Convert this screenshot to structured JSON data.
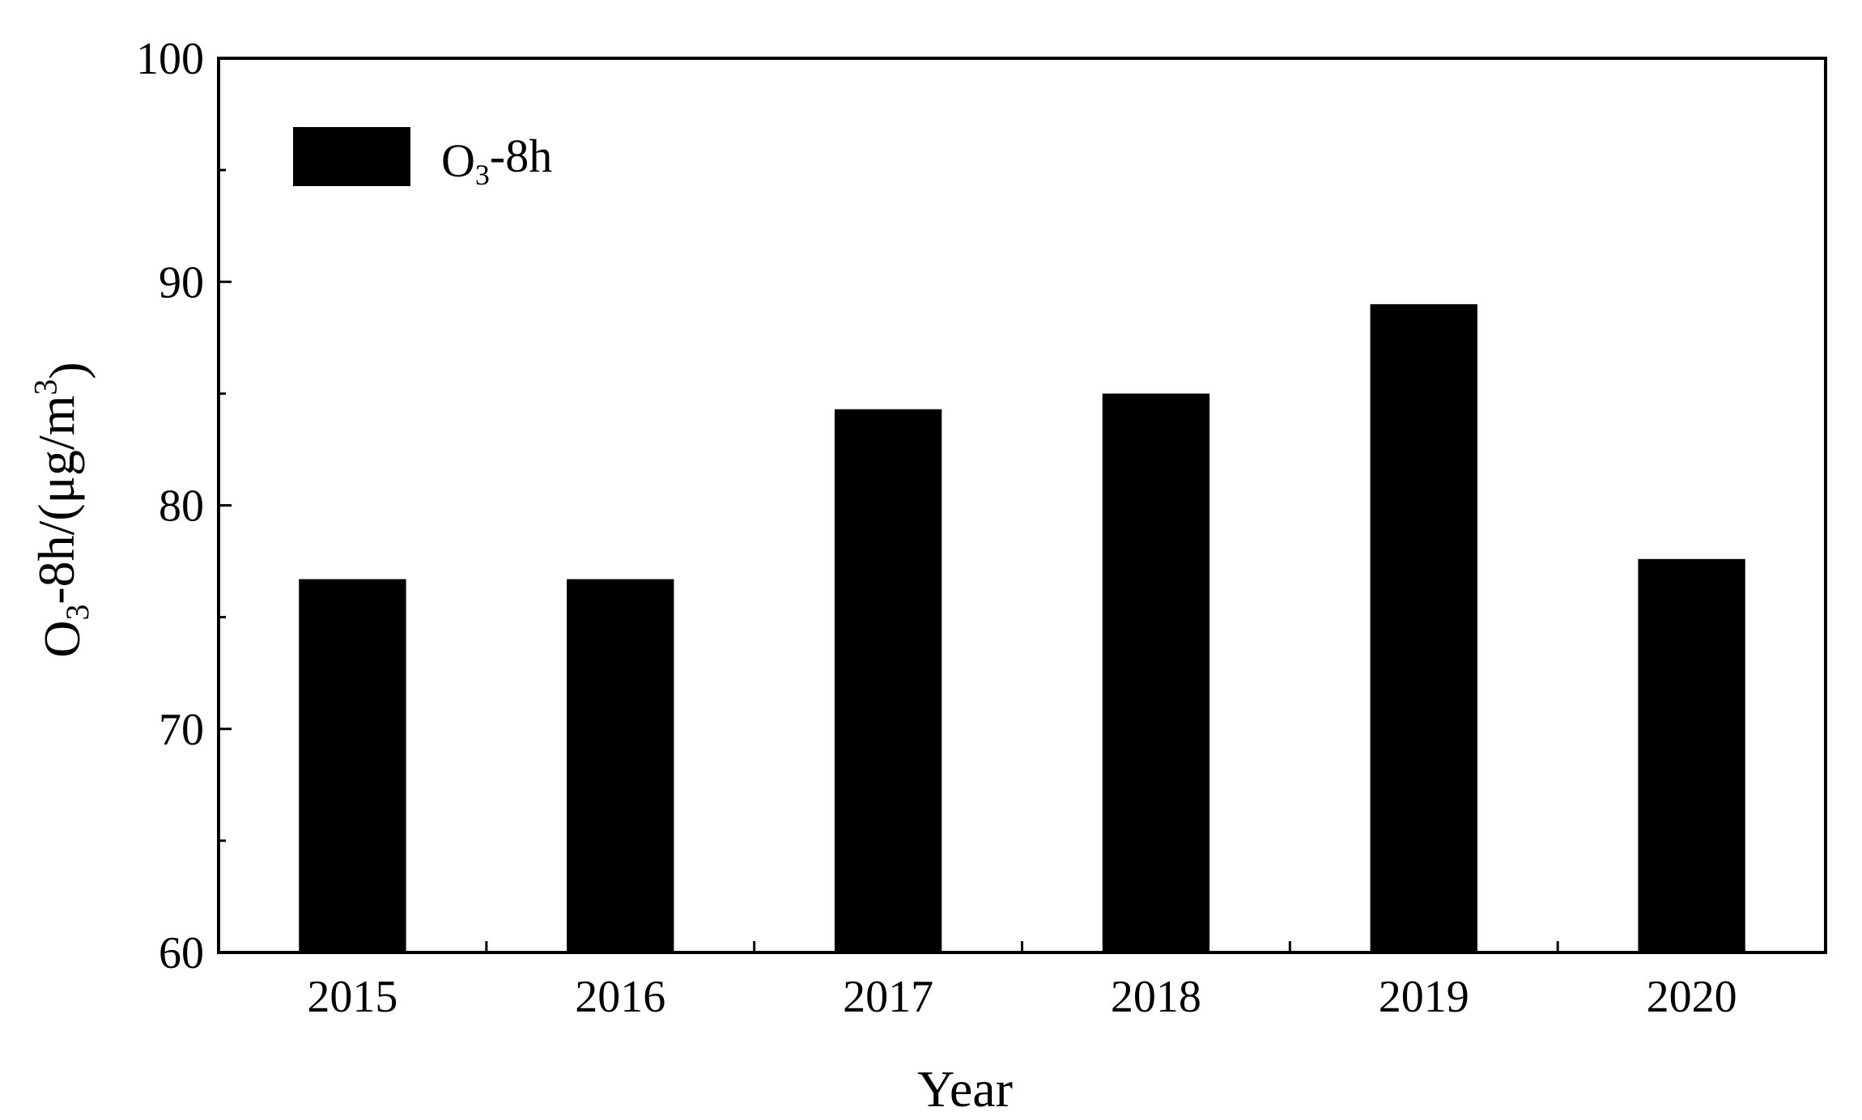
{
  "chart_data": {
    "type": "bar",
    "categories": [
      "2015",
      "2016",
      "2017",
      "2018",
      "2019",
      "2020"
    ],
    "series": [
      {
        "name": "O3-8h",
        "values": [
          76.7,
          76.7,
          84.3,
          85.0,
          89.0,
          77.6
        ]
      }
    ],
    "xlabel": "Year",
    "ylabel": "O3-8h/(μg/m3)",
    "ylim": [
      60,
      100
    ],
    "yticks": [
      60,
      70,
      80,
      90,
      100
    ],
    "ytick_labels": [
      "60",
      "70",
      "80",
      "90",
      "100"
    ],
    "grid": false,
    "legend_position": "top-left",
    "bar_color": "#000000"
  }
}
